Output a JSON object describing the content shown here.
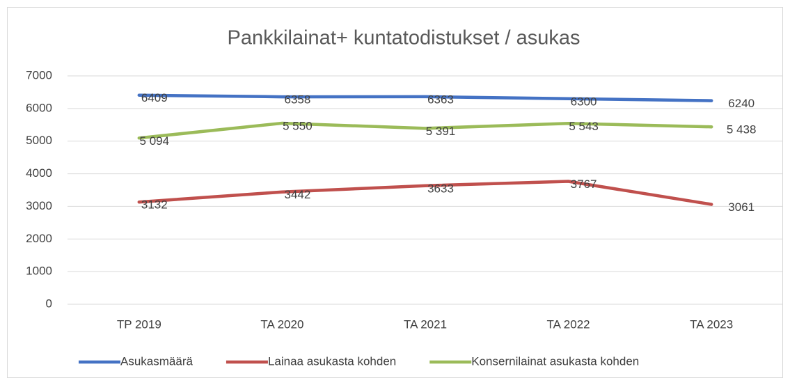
{
  "chart_data": {
    "type": "line",
    "title": "Pankkilainat+ kuntatodistukset / asukas",
    "categories": [
      "TP 2019",
      "TA 2020",
      "TA 2021",
      "TA 2022",
      "TA 2023"
    ],
    "series": [
      {
        "name": "Asukasmäärä",
        "color": "#4472c4",
        "values": [
          6409,
          6358,
          6363,
          6300,
          6240
        ]
      },
      {
        "name": "Lainaa asukasta kohden",
        "color": "#c0504d",
        "values": [
          3132,
          3442,
          3633,
          3767,
          3061
        ]
      },
      {
        "name": "Konsernilainat asukasta kohden",
        "color": "#9bbb59",
        "values": [
          5094,
          5550,
          5391,
          5543,
          5438
        ],
        "value_labels": [
          "5 094",
          "5 550",
          "5 391",
          "5 543",
          "5 438"
        ]
      }
    ],
    "ylim": [
      0,
      7000
    ],
    "yticks": [
      0,
      1000,
      2000,
      3000,
      4000,
      5000,
      6000,
      7000
    ],
    "grid": true,
    "legend": "bottom"
  }
}
